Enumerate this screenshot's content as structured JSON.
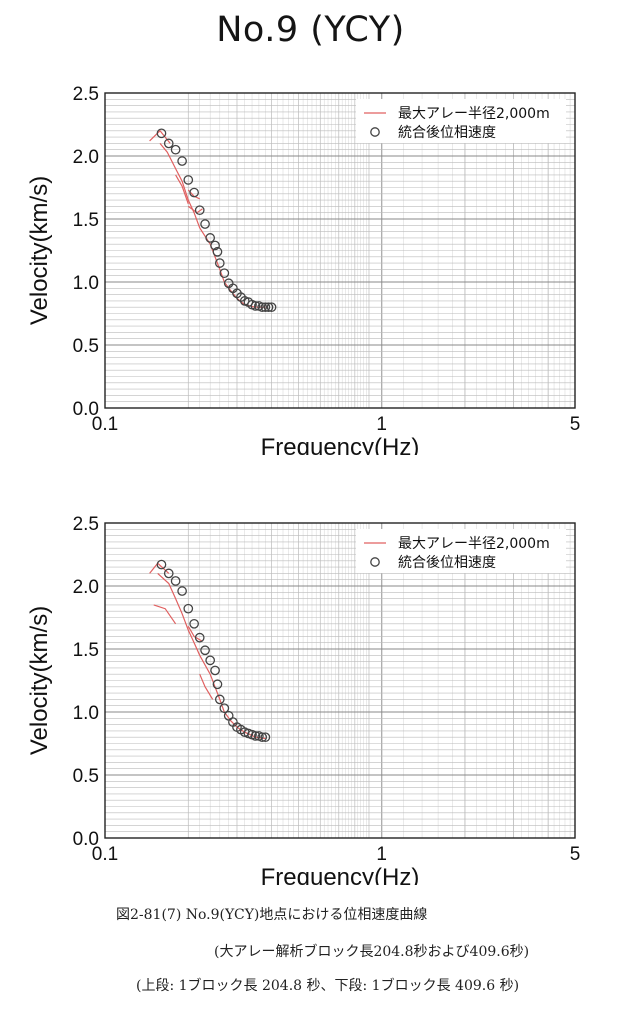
{
  "page_title": "No.9 (YCY)",
  "captions": {
    "line1": "図2-81(7) No.9(YCY)地点における位相速度曲線",
    "line2": "(大アレー解析ブロック長204.8秒および409.6秒)",
    "line3": "(上段: 1ブロック長 204.8 秒、下段: 1ブロック長 409.6 秒)"
  },
  "colors": {
    "line_series": "#e06060",
    "marker_series": "#444444",
    "grid_major": "#888888",
    "grid_minor": "#bbbbbb"
  },
  "chart_data": [
    {
      "type": "scatter",
      "xlabel": "Frequency(Hz)",
      "ylabel": "Velocity(km/s)",
      "xscale": "log",
      "xlim": [
        0.1,
        5
      ],
      "ylim": [
        0,
        2.5
      ],
      "xticks": [
        "0.1",
        "1",
        "5"
      ],
      "yticks": [
        "0.0",
        "0.5",
        "1.0",
        "1.5",
        "2.0",
        "2.5"
      ],
      "grid": true,
      "legend_position": "top-right",
      "series": [
        {
          "name": "最大アレー半径2,000m",
          "style": "line",
          "segments": [
            [
              [
                0.145,
                2.12
              ],
              [
                0.158,
                2.2
              ],
              [
                0.172,
                2.1
              ]
            ],
            [
              [
                0.158,
                2.1
              ],
              [
                0.168,
                2.03
              ],
              [
                0.18,
                1.9
              ],
              [
                0.19,
                1.8
              ],
              [
                0.2,
                1.65
              ],
              [
                0.21,
                1.55
              ],
              [
                0.22,
                1.43
              ],
              [
                0.24,
                1.3
              ],
              [
                0.26,
                1.1
              ],
              [
                0.27,
                1.0
              ],
              [
                0.285,
                0.93
              ],
              [
                0.3,
                0.87
              ],
              [
                0.32,
                0.82
              ],
              [
                0.35,
                0.8
              ],
              [
                0.38,
                0.8
              ]
            ],
            [
              [
                0.18,
                1.85
              ],
              [
                0.19,
                1.76
              ],
              [
                0.2,
                1.62
              ]
            ],
            [
              [
                0.2,
                1.73
              ],
              [
                0.21,
                1.68
              ],
              [
                0.22,
                1.66
              ]
            ],
            [
              [
                0.2,
                1.6
              ],
              [
                0.215,
                1.55
              ],
              [
                0.225,
                1.58
              ]
            ]
          ]
        },
        {
          "name": "統合後位相速度",
          "style": "markers",
          "x": [
            0.16,
            0.17,
            0.18,
            0.19,
            0.2,
            0.21,
            0.22,
            0.23,
            0.24,
            0.25,
            0.255,
            0.26,
            0.27,
            0.28,
            0.29,
            0.3,
            0.31,
            0.32,
            0.33,
            0.34,
            0.35,
            0.36,
            0.37,
            0.38,
            0.39,
            0.4
          ],
          "y": [
            2.18,
            2.1,
            2.05,
            1.96,
            1.81,
            1.71,
            1.57,
            1.46,
            1.35,
            1.29,
            1.24,
            1.15,
            1.07,
            0.99,
            0.95,
            0.91,
            0.88,
            0.85,
            0.84,
            0.82,
            0.81,
            0.81,
            0.8,
            0.8,
            0.8,
            0.8
          ]
        }
      ]
    },
    {
      "type": "scatter",
      "xlabel": "Frequency(Hz)",
      "ylabel": "Velocity(km/s)",
      "xscale": "log",
      "xlim": [
        0.1,
        5
      ],
      "ylim": [
        0,
        2.5
      ],
      "xticks": [
        "0.1",
        "1",
        "5"
      ],
      "yticks": [
        "0.0",
        "0.5",
        "1.0",
        "1.5",
        "2.0",
        "2.5"
      ],
      "grid": true,
      "legend_position": "top-right",
      "series": [
        {
          "name": "最大アレー半径2,000m",
          "style": "line",
          "segments": [
            [
              [
                0.145,
                2.1
              ],
              [
                0.155,
                2.18
              ],
              [
                0.17,
                2.1
              ]
            ],
            [
              [
                0.155,
                2.1
              ],
              [
                0.17,
                2.02
              ],
              [
                0.18,
                1.9
              ],
              [
                0.19,
                1.78
              ],
              [
                0.2,
                1.65
              ],
              [
                0.21,
                1.55
              ],
              [
                0.22,
                1.45
              ],
              [
                0.24,
                1.3
              ],
              [
                0.26,
                1.1
              ],
              [
                0.27,
                1.0
              ],
              [
                0.285,
                0.93
              ],
              [
                0.3,
                0.88
              ],
              [
                0.32,
                0.84
              ],
              [
                0.35,
                0.8
              ],
              [
                0.38,
                0.79
              ]
            ],
            [
              [
                0.15,
                1.85
              ],
              [
                0.165,
                1.82
              ],
              [
                0.18,
                1.7
              ]
            ],
            [
              [
                0.2,
                1.68
              ],
              [
                0.21,
                1.6
              ],
              [
                0.225,
                1.56
              ]
            ],
            [
              [
                0.22,
                1.3
              ],
              [
                0.23,
                1.2
              ],
              [
                0.245,
                1.1
              ]
            ]
          ]
        },
        {
          "name": "統合後位相速度",
          "style": "markers",
          "x": [
            0.16,
            0.17,
            0.18,
            0.19,
            0.2,
            0.21,
            0.22,
            0.23,
            0.24,
            0.25,
            0.255,
            0.26,
            0.27,
            0.28,
            0.29,
            0.3,
            0.31,
            0.32,
            0.33,
            0.34,
            0.35,
            0.36,
            0.37,
            0.38
          ],
          "y": [
            2.17,
            2.1,
            2.04,
            1.96,
            1.82,
            1.7,
            1.59,
            1.49,
            1.41,
            1.33,
            1.22,
            1.1,
            1.03,
            0.97,
            0.92,
            0.88,
            0.86,
            0.84,
            0.83,
            0.82,
            0.81,
            0.81,
            0.8,
            0.8
          ]
        }
      ]
    }
  ]
}
